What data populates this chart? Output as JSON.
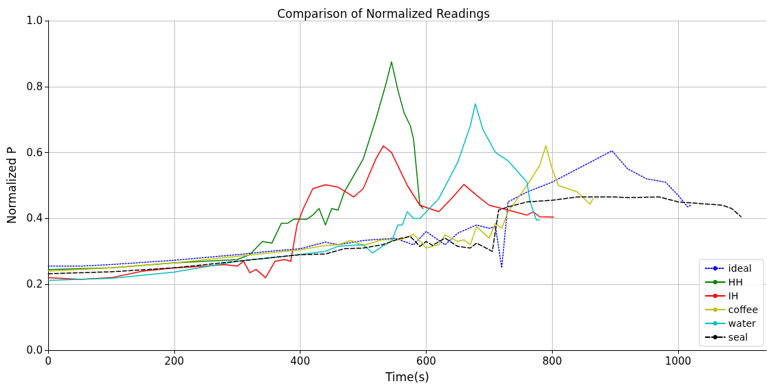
{
  "chart_data": {
    "type": "line",
    "title": "Comparison of Normalized Readings",
    "xlabel": "Time(s)",
    "ylabel": "Normalized P",
    "xlim": [
      0,
      1140
    ],
    "xticks": [
      0,
      200,
      400,
      600,
      800,
      1000
    ],
    "ylim": [
      0,
      1
    ],
    "yticks": [
      {
        "value": 0,
        "label": "0.0"
      },
      {
        "value": 0.2,
        "label": "0.2"
      },
      {
        "value": 0.4,
        "label": "0.4"
      },
      {
        "value": 0.6,
        "label": "0.6"
      },
      {
        "value": 0.8,
        "label": "0.8"
      },
      {
        "value": 1,
        "label": "1.0"
      }
    ],
    "grid": true,
    "legend": "bottom right",
    "marker": "none",
    "series": [
      {
        "name": "ideal",
        "color": "#0000ff",
        "line_style": "dotted",
        "x": [
          0,
          50,
          100,
          200,
          300,
          350,
          400,
          440,
          460,
          500,
          550,
          580,
          600,
          630,
          650,
          680,
          700,
          710,
          720,
          730,
          760,
          800,
          850,
          895,
          920,
          950,
          980,
          1000,
          1015,
          1020
        ],
        "values": [
          0.255,
          0.255,
          0.26,
          0.273,
          0.29,
          0.3,
          0.308,
          0.328,
          0.32,
          0.333,
          0.34,
          0.32,
          0.36,
          0.32,
          0.355,
          0.38,
          0.37,
          0.375,
          0.25,
          0.45,
          0.48,
          0.51,
          0.56,
          0.605,
          0.55,
          0.52,
          0.51,
          0.47,
          0.435,
          0.44
        ]
      },
      {
        "name": "HH",
        "color": "#008000",
        "line_style": "solid",
        "x": [
          0,
          100,
          200,
          300,
          320,
          340,
          355,
          370,
          380,
          390,
          410,
          420,
          430,
          440,
          450,
          460,
          470,
          500,
          520,
          535,
          545,
          555,
          565,
          575,
          580,
          590,
          595
        ],
        "values": [
          0.245,
          0.25,
          0.265,
          0.275,
          0.29,
          0.33,
          0.325,
          0.385,
          0.385,
          0.398,
          0.397,
          0.41,
          0.43,
          0.38,
          0.43,
          0.425,
          0.48,
          0.58,
          0.7,
          0.8,
          0.875,
          0.79,
          0.72,
          0.68,
          0.64,
          0.44,
          0.43
        ]
      },
      {
        "name": "IH",
        "color": "#ff0000",
        "line_style": "solid",
        "x": [
          0,
          50,
          100,
          150,
          200,
          250,
          280,
          300,
          310,
          320,
          330,
          345,
          360,
          375,
          385,
          395,
          405,
          420,
          440,
          460,
          485,
          500,
          520,
          532,
          545,
          570,
          590,
          620,
          640,
          660,
          680,
          700,
          740,
          760,
          770,
          780,
          802
        ],
        "values": [
          0.22,
          0.215,
          0.22,
          0.24,
          0.25,
          0.255,
          0.26,
          0.255,
          0.27,
          0.235,
          0.245,
          0.22,
          0.27,
          0.275,
          0.27,
          0.38,
          0.43,
          0.49,
          0.502,
          0.495,
          0.465,
          0.49,
          0.58,
          0.62,
          0.6,
          0.5,
          0.44,
          0.42,
          0.46,
          0.503,
          0.47,
          0.44,
          0.42,
          0.41,
          0.42,
          0.405,
          0.404
        ]
      },
      {
        "name": "coffee",
        "color": "#bfbf00",
        "line_style": "solid",
        "x": [
          0,
          100,
          200,
          300,
          350,
          400,
          440,
          460,
          480,
          500,
          530,
          560,
          580,
          600,
          620,
          630,
          650,
          660,
          670,
          680,
          700,
          710,
          720,
          730,
          760,
          780,
          790,
          800,
          810,
          840,
          860,
          865
        ],
        "values": [
          0.24,
          0.25,
          0.265,
          0.285,
          0.295,
          0.305,
          0.318,
          0.32,
          0.333,
          0.318,
          0.335,
          0.335,
          0.352,
          0.31,
          0.32,
          0.35,
          0.33,
          0.335,
          0.32,
          0.375,
          0.34,
          0.385,
          0.37,
          0.42,
          0.5,
          0.56,
          0.62,
          0.55,
          0.5,
          0.48,
          0.443,
          0.46
        ]
      },
      {
        "name": "water",
        "color": "#00bfbf",
        "line_style": "solid",
        "x": [
          0,
          100,
          200,
          300,
          350,
          400,
          440,
          460,
          480,
          500,
          515,
          530,
          545,
          555,
          562,
          570,
          580,
          590,
          620,
          650,
          670,
          678,
          690,
          710,
          730,
          760,
          765,
          775,
          780
        ],
        "values": [
          0.212,
          0.218,
          0.237,
          0.27,
          0.28,
          0.29,
          0.3,
          0.315,
          0.318,
          0.32,
          0.295,
          0.315,
          0.33,
          0.38,
          0.38,
          0.42,
          0.4,
          0.4,
          0.46,
          0.57,
          0.68,
          0.748,
          0.67,
          0.6,
          0.575,
          0.51,
          0.45,
          0.395,
          0.395
        ]
      },
      {
        "name": "seal",
        "color": "#000000",
        "line_style": "dashed",
        "x": [
          0,
          100,
          200,
          300,
          350,
          400,
          440,
          470,
          500,
          530,
          560,
          575,
          590,
          600,
          610,
          630,
          650,
          670,
          680,
          705,
          715,
          730,
          760,
          800,
          840,
          900,
          920,
          970,
          1000,
          1070,
          1085,
          1100
        ],
        "values": [
          0.232,
          0.238,
          0.25,
          0.27,
          0.28,
          0.29,
          0.292,
          0.308,
          0.31,
          0.32,
          0.34,
          0.345,
          0.315,
          0.33,
          0.318,
          0.34,
          0.315,
          0.31,
          0.325,
          0.3,
          0.425,
          0.435,
          0.45,
          0.455,
          0.465,
          0.465,
          0.463,
          0.465,
          0.45,
          0.44,
          0.43,
          0.405
        ]
      }
    ]
  }
}
